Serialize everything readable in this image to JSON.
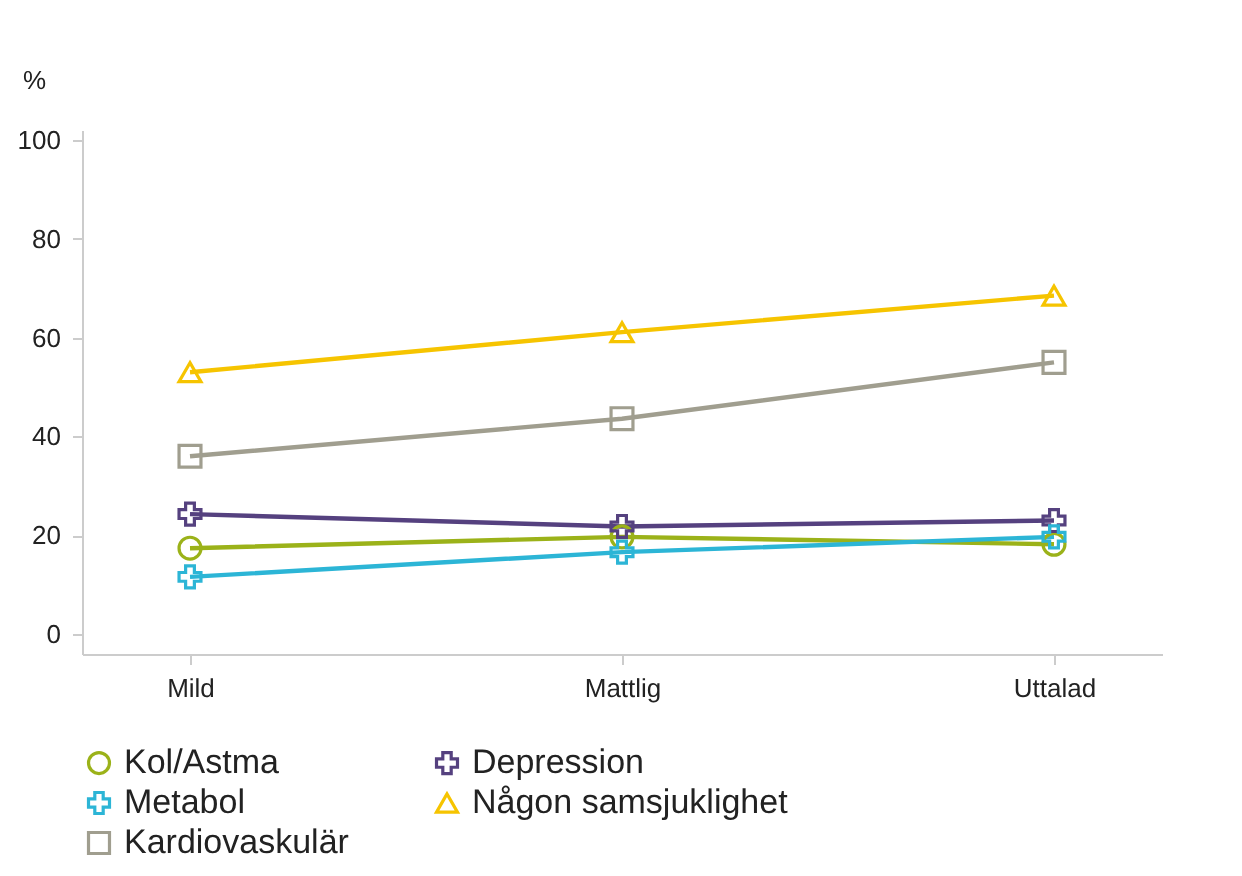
{
  "chart_data": {
    "type": "line",
    "ylabel": "%",
    "categories": [
      "Mild",
      "Mattlig",
      "Uttalad"
    ],
    "ylim": [
      -4,
      102
    ],
    "yticks": [
      0,
      20,
      40,
      60,
      80,
      100
    ],
    "grid": false,
    "legend": "bottom",
    "series": [
      {
        "name": "Kol/Astma",
        "color": "#9bb219",
        "marker": "circle",
        "values": [
          17.4,
          19.7,
          18.2
        ]
      },
      {
        "name": "Depression",
        "color": "#55417f",
        "marker": "cross",
        "values": [
          24.3,
          21.8,
          23
        ]
      },
      {
        "name": "Metabol",
        "color": "#2cb5d6",
        "marker": "cross",
        "values": [
          11.6,
          16.6,
          19.7
        ]
      },
      {
        "name": "Någon samsjuklighet",
        "color": "#f6c400",
        "marker": "triangle",
        "values": [
          53,
          61.1,
          68.5
        ]
      },
      {
        "name": "Kardiovaskulär",
        "color": "#a09e8f",
        "marker": "square",
        "values": [
          36,
          43.6,
          55
        ]
      }
    ]
  }
}
